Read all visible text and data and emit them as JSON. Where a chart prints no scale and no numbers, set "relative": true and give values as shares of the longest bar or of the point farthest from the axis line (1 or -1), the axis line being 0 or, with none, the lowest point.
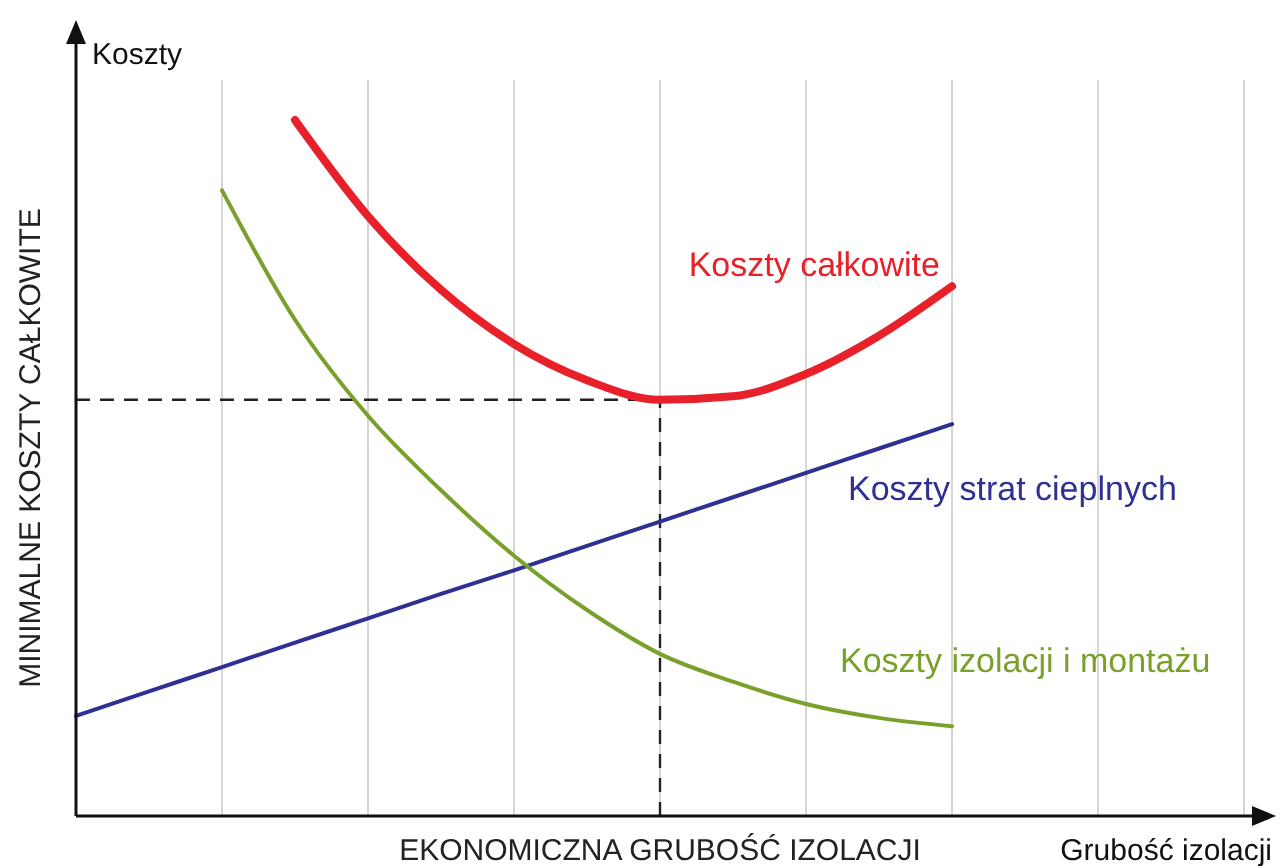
{
  "chart_data": {
    "type": "line",
    "relative": true,
    "ylabel": "Koszty",
    "xlabel": "Grubość izolacji",
    "grid": "x",
    "marker": "none",
    "line_style": "solid",
    "legend": false,
    "categories": [
      null,
      null,
      null,
      null,
      null,
      null,
      null,
      null,
      null,
      null,
      null,
      null,
      null,
      null,
      null,
      null,
      null
    ],
    "series": [
      {
        "name": "Koszty całkowite",
        "color": "#e8202a",
        "values": [
          null,
          null,
          null,
          1.0,
          0.862,
          0.756,
          0.678,
          0.626,
          0.598,
          0.603,
          0.635,
          0.69,
          0.761,
          null,
          null,
          null,
          null
        ]
      },
      {
        "name": "Koszty strat cieplnych",
        "color": "#2e3192",
        "values": [
          0.144,
          0.179,
          0.214,
          0.249,
          0.284,
          0.319,
          0.353,
          0.388,
          0.423,
          0.458,
          0.493,
          0.528,
          0.563,
          null,
          null,
          null,
          null
        ]
      },
      {
        "name": "Koszty izolacji i montażu",
        "color": "#7aa02c",
        "values": [
          null,
          null,
          0.899,
          0.713,
          0.575,
          0.468,
          0.374,
          0.296,
          0.233,
          0.193,
          0.161,
          0.141,
          0.129,
          null,
          null,
          null,
          null
        ]
      }
    ],
    "ref_lines": [
      {
        "axis": "y",
        "value": 0.598,
        "line_style": "dashed"
      }
    ],
    "annotations": [
      "MINIMALNE KOSZTY CAŁKOWITE",
      "EKONOMICZNA GRUBOŚĆ IZOLACJI"
    ]
  }
}
